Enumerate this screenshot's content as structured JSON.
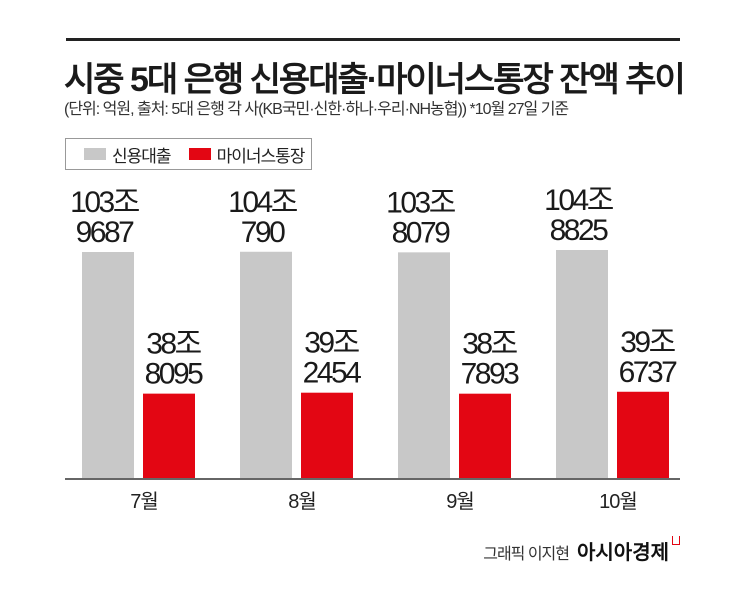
{
  "title": "시중 5대 은행 신용대출·마이너스통장 잔액 추이",
  "subtitle": "(단위: 억원, 출처: 5대 은행 각 사(KB국민·신한·하나·우리·NH농협))   *10월 27일 기준",
  "credit": {
    "author": "그래픽 이지현",
    "brand": "아시아경제"
  },
  "colors": {
    "신용대출": "#c8c8c8",
    "마이너스통장": "#e30613",
    "text": "#222222"
  },
  "chart_data": {
    "type": "bar",
    "title": "시중 5대 은행 신용대출·마이너스통장 잔액 추이",
    "unit": "억원",
    "categories": [
      "7월",
      "8월",
      "9월",
      "10월"
    ],
    "series": [
      {
        "name": "신용대출",
        "values": [
          1039687,
          1040790,
          1038079,
          1048825
        ],
        "labels": [
          [
            "103조",
            "9687"
          ],
          [
            "104조",
            "790"
          ],
          [
            "103조",
            "8079"
          ],
          [
            "104조",
            "8825"
          ]
        ]
      },
      {
        "name": "마이너스통장",
        "values": [
          388095,
          392454,
          387893,
          396737
        ],
        "labels": [
          [
            "38조",
            "8095"
          ],
          [
            "39조",
            "2454"
          ],
          [
            "38조",
            "7893"
          ],
          [
            "39조",
            "6737"
          ]
        ]
      }
    ],
    "legend": [
      "신용대출",
      "마이너스통장"
    ],
    "legend_position": "top-left",
    "grid": false,
    "ylim": [
      0,
      1100000
    ]
  }
}
